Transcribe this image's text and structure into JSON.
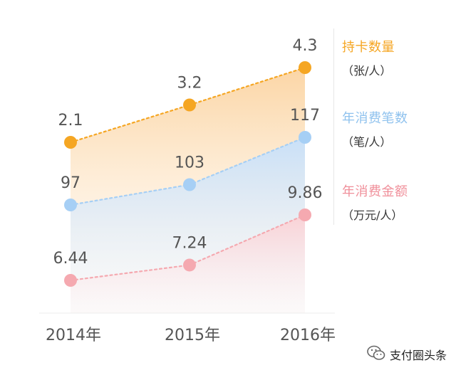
{
  "chart_data": {
    "type": "line",
    "categories": [
      "2014年",
      "2015年",
      "2016年"
    ],
    "series": [
      {
        "name": "持卡数量",
        "unit": "（张/人）",
        "values": [
          2.1,
          3.2,
          4.3
        ],
        "labels": [
          "2.1",
          "3.2",
          "4.3"
        ],
        "color": "#f5a623"
      },
      {
        "name": "年消费笔数",
        "unit": "（笔/人）",
        "values": [
          97,
          103,
          117
        ],
        "labels": [
          "97",
          "103",
          "117"
        ],
        "color": "#a6cff5"
      },
      {
        "name": "年消费金额",
        "unit": "（万元/人）",
        "values": [
          6.44,
          7.24,
          9.86
        ],
        "labels": [
          "6.44",
          "7.24",
          "9.86"
        ],
        "color": "#f5a9b0"
      }
    ],
    "legend_position": "right",
    "grid": false,
    "line_style": "dotted"
  },
  "footer": {
    "label": "支付圈头条"
  },
  "colors": {
    "orange": "#f5a623",
    "blue": "#a6cff5",
    "pink": "#f5a9b0",
    "axis_text": "#555555"
  },
  "icons": {
    "footer_icon": "wechat-icon"
  }
}
